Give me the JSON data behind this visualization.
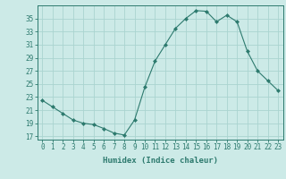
{
  "x": [
    0,
    1,
    2,
    3,
    4,
    5,
    6,
    7,
    8,
    9,
    10,
    11,
    12,
    13,
    14,
    15,
    16,
    17,
    18,
    19,
    20,
    21,
    22,
    23
  ],
  "y": [
    22.5,
    21.5,
    20.5,
    19.5,
    19.0,
    18.8,
    18.2,
    17.5,
    17.2,
    19.5,
    24.5,
    28.5,
    31.0,
    33.5,
    35.0,
    36.2,
    36.1,
    34.5,
    35.5,
    34.5,
    30.0,
    27.0,
    25.5,
    24.0
  ],
  "line_color": "#2d7a6e",
  "marker": "D",
  "marker_size": 2,
  "bg_color": "#cceae7",
  "grid_color": "#aad4d0",
  "axis_color": "#2d7a6e",
  "xlabel": "Humidex (Indice chaleur)",
  "xlim": [
    -0.5,
    23.5
  ],
  "ylim": [
    16.5,
    37
  ],
  "yticks": [
    17,
    19,
    21,
    23,
    25,
    27,
    29,
    31,
    33,
    35
  ],
  "xticks": [
    0,
    1,
    2,
    3,
    4,
    5,
    6,
    7,
    8,
    9,
    10,
    11,
    12,
    13,
    14,
    15,
    16,
    17,
    18,
    19,
    20,
    21,
    22,
    23
  ],
  "xtick_labels": [
    "0",
    "1",
    "2",
    "3",
    "4",
    "5",
    "6",
    "7",
    "8",
    "9",
    "10",
    "11",
    "12",
    "13",
    "14",
    "15",
    "16",
    "17",
    "18",
    "19",
    "20",
    "21",
    "22",
    "23"
  ],
  "tick_fontsize": 5.5,
  "label_fontsize": 6.5
}
